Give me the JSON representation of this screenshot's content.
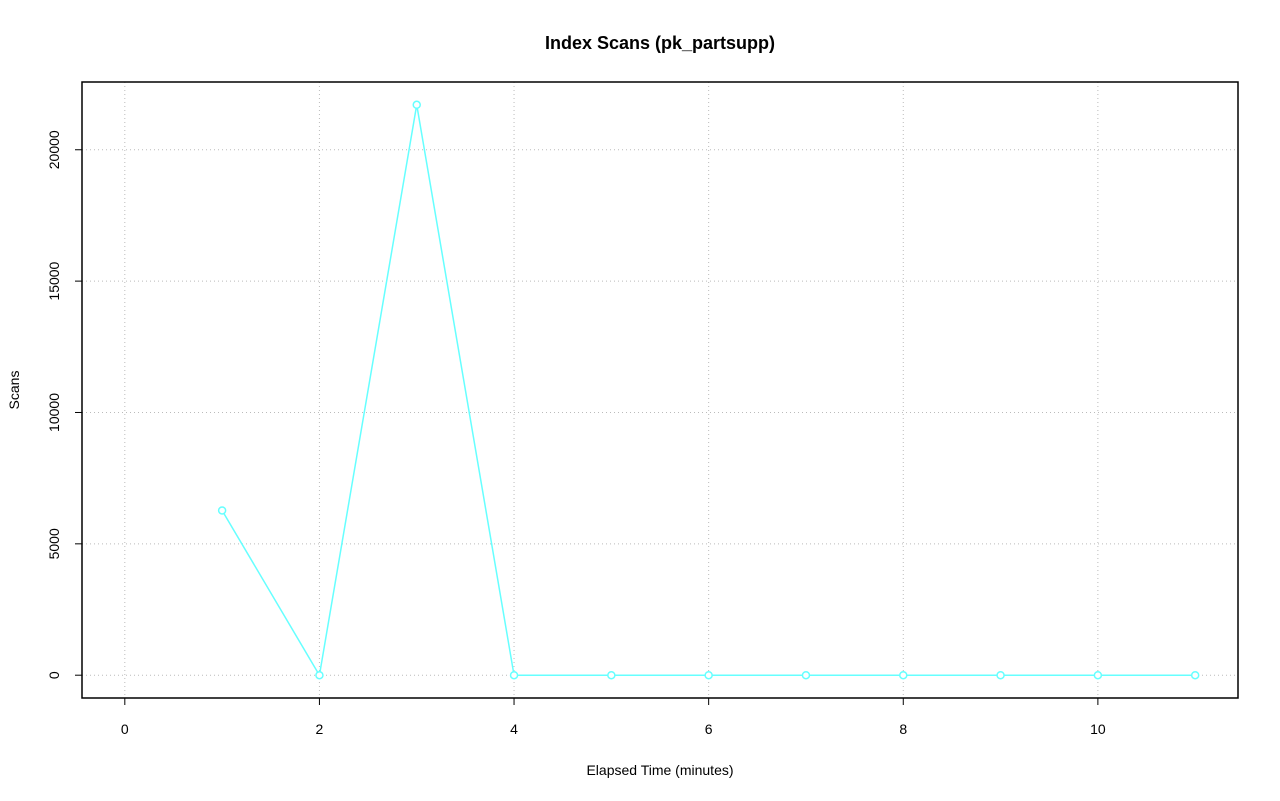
{
  "chart_data": {
    "type": "line",
    "title": "Index Scans (pk_partsupp)",
    "x_label": "Elapsed Time (minutes)",
    "y_label": "Scans",
    "x": [
      1,
      2,
      3,
      4,
      5,
      6,
      7,
      8,
      9,
      10,
      11
    ],
    "series": [
      {
        "name": "pk_partsupp",
        "color": "#66ffff",
        "values": [
          6270,
          0,
          21711,
          0,
          0,
          0,
          0,
          0,
          0,
          0,
          0
        ]
      }
    ],
    "xlim": [
      -0.44,
      11.44
    ],
    "xticks": [
      0,
      2,
      4,
      6,
      8,
      10
    ],
    "ylim": [
      -868,
      22579
    ],
    "yticks": [
      0,
      5000,
      10000,
      15000,
      20000
    ],
    "grid": true
  }
}
